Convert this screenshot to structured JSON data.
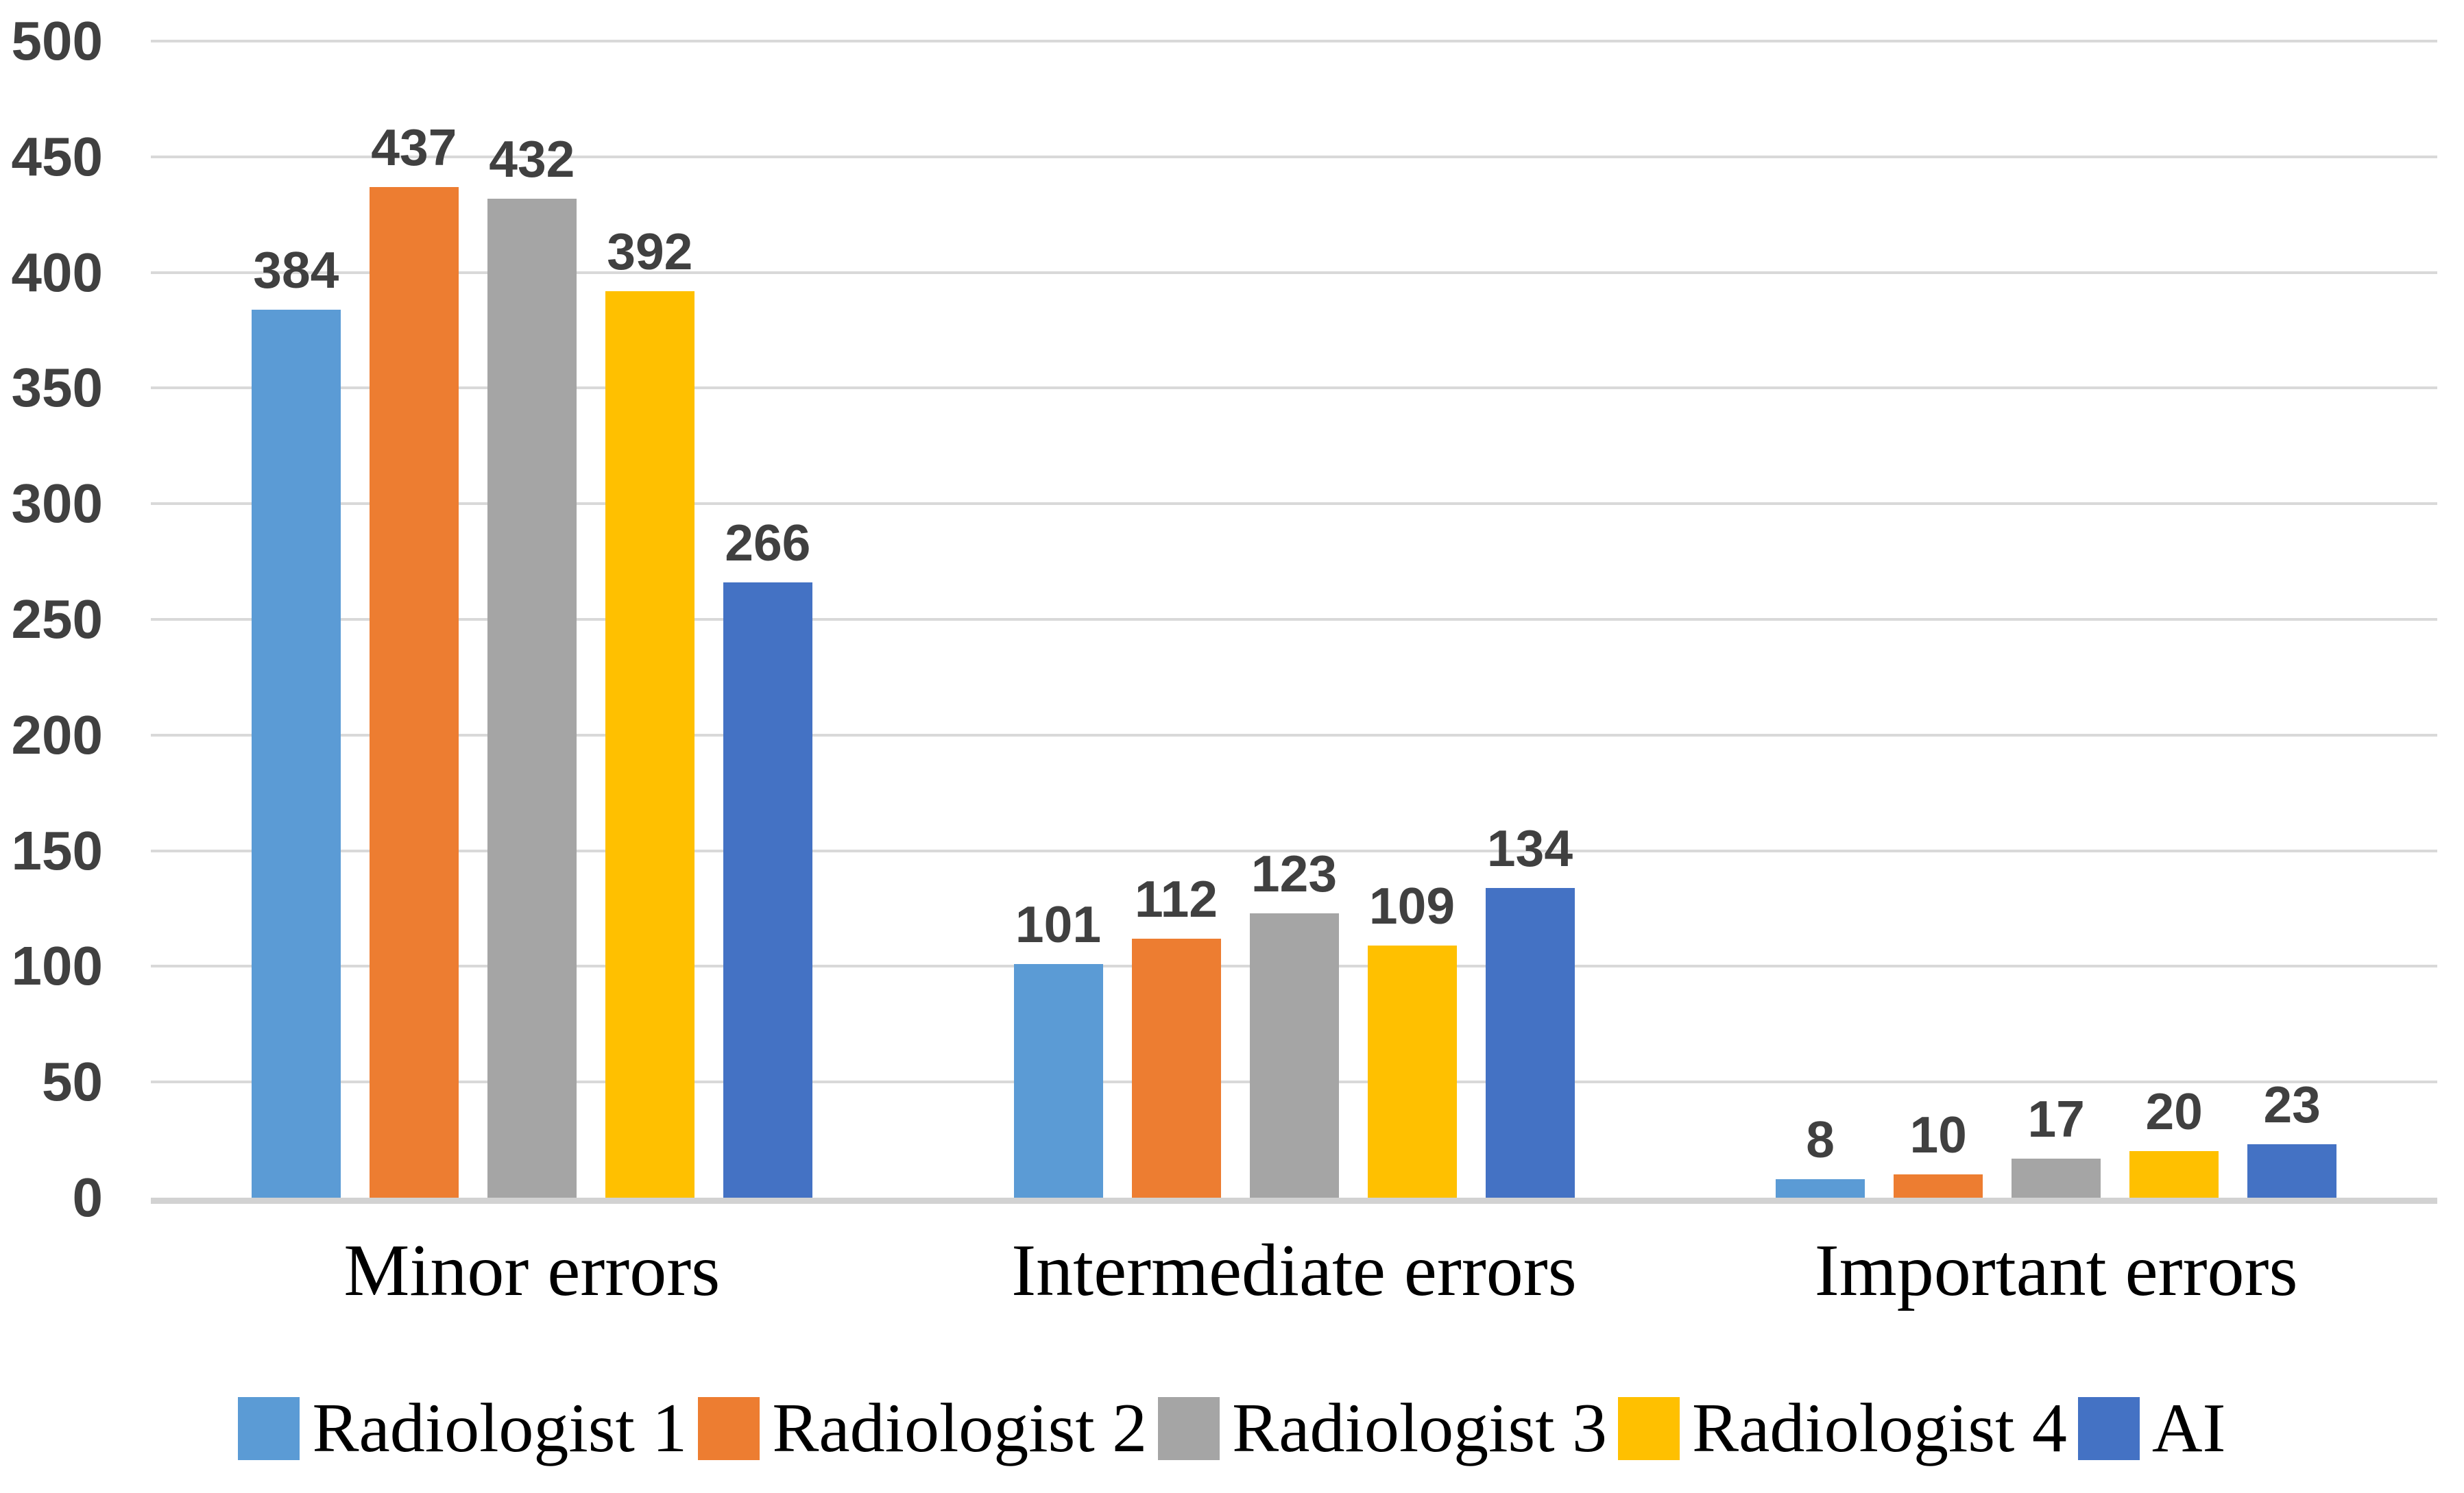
{
  "chart_data": {
    "type": "bar",
    "title": "",
    "xlabel": "",
    "ylabel": "",
    "categories": [
      "Minor errors",
      "Intermediate errors",
      "Important errors"
    ],
    "series": [
      {
        "name": "Radiologist 1",
        "color": "#5B9BD5",
        "values": [
          384,
          101,
          8
        ]
      },
      {
        "name": "Radiologist 2",
        "color": "#ED7D31",
        "values": [
          437,
          112,
          10
        ]
      },
      {
        "name": "Radiologist 3",
        "color": "#A5A5A5",
        "values": [
          432,
          123,
          17
        ]
      },
      {
        "name": "Radiologist 4",
        "color": "#FFC000",
        "values": [
          392,
          109,
          20
        ]
      },
      {
        "name": "AI",
        "color": "#4472C4",
        "values": [
          266,
          134,
          23
        ]
      }
    ],
    "y_ticks": [
      0,
      50,
      100,
      150,
      200,
      250,
      300,
      350,
      400,
      450,
      500
    ],
    "ylim": [
      0,
      500
    ],
    "grid": true,
    "legend_position": "bottom",
    "colors": {
      "background": "#FFFFFF",
      "gridline": "#D9D9D9",
      "axis_line": "#D2D2D2",
      "tick_label": "#404040",
      "data_label": "#404040",
      "category_label": "#000000",
      "legend_label": "#000000"
    }
  }
}
